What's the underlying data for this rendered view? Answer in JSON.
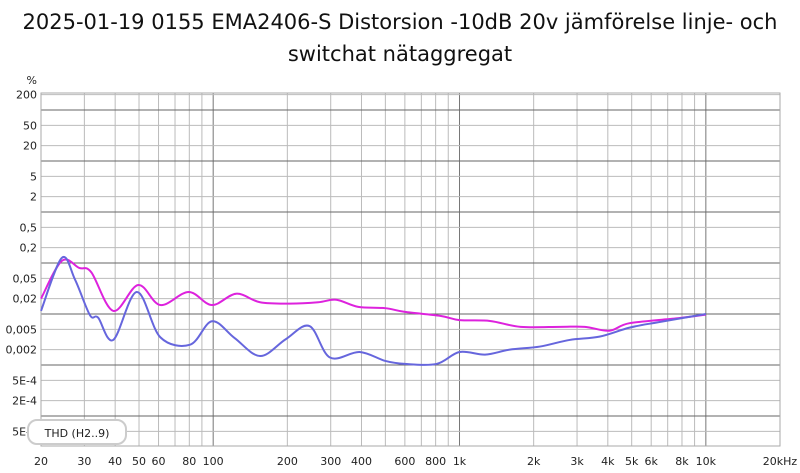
{
  "chart_data": {
    "type": "line",
    "title": "2025-01-19 0155 EMA2406-S Distorsion -10dB 20v jämförelse linje- och switchat nätaggregat",
    "xlabel": "",
    "ylabel": "%",
    "x_scale": "log",
    "y_scale": "log",
    "xlim": [
      20,
      20000
    ],
    "ylim": [
      2.7e-05,
      200
    ],
    "grid": true,
    "legend": {
      "placement": "bottom-left",
      "text": "THD (H2..9)"
    },
    "x_ticks": [
      {
        "v": 20,
        "l": "20"
      },
      {
        "v": 30,
        "l": "30"
      },
      {
        "v": 40,
        "l": "40"
      },
      {
        "v": 50,
        "l": "50"
      },
      {
        "v": 60,
        "l": "60"
      },
      {
        "v": 80,
        "l": "80"
      },
      {
        "v": 100,
        "l": "100"
      },
      {
        "v": 200,
        "l": "200"
      },
      {
        "v": 300,
        "l": "300"
      },
      {
        "v": 400,
        "l": "400"
      },
      {
        "v": 600,
        "l": "600"
      },
      {
        "v": 800,
        "l": "800"
      },
      {
        "v": 1000,
        "l": "1k"
      },
      {
        "v": 2000,
        "l": "2k"
      },
      {
        "v": 3000,
        "l": "3k"
      },
      {
        "v": 4000,
        "l": "4k"
      },
      {
        "v": 5000,
        "l": "5k"
      },
      {
        "v": 6000,
        "l": "6k"
      },
      {
        "v": 8000,
        "l": "8k"
      },
      {
        "v": 10000,
        "l": "10k"
      },
      {
        "v": 20000,
        "l": "20kHz"
      }
    ],
    "y_ticks": [
      {
        "v": 200,
        "l": "200"
      },
      {
        "v": 50,
        "l": "50"
      },
      {
        "v": 20,
        "l": "20"
      },
      {
        "v": 5,
        "l": "5"
      },
      {
        "v": 2,
        "l": "2"
      },
      {
        "v": 0.5,
        "l": "0,5"
      },
      {
        "v": 0.2,
        "l": "0,2"
      },
      {
        "v": 0.05,
        "l": "0,05"
      },
      {
        "v": 0.02,
        "l": "0,02"
      },
      {
        "v": 0.005,
        "l": "0,005"
      },
      {
        "v": 0.002,
        "l": "0,002"
      },
      {
        "v": 0.0005,
        "l": "5E-4"
      },
      {
        "v": 0.0002,
        "l": "2E-4"
      },
      {
        "v": 5e-05,
        "l": "5E-5"
      }
    ],
    "series": [
      {
        "color": "#dd22dd",
        "x": [
          20,
          24.3,
          28.6,
          32,
          39.3,
          49.6,
          61,
          79.5,
          98.8,
          124,
          155,
          205,
          267,
          316,
          388,
          500,
          600,
          836,
          1000,
          1330,
          1770,
          2560,
          3230,
          4060,
          4900,
          7760,
          10000
        ],
        "y": [
          0.02,
          0.11,
          0.08,
          0.066,
          0.0115,
          0.037,
          0.015,
          0.027,
          0.015,
          0.025,
          0.017,
          0.016,
          0.017,
          0.019,
          0.0138,
          0.013,
          0.011,
          0.0092,
          0.0076,
          0.0073,
          0.0056,
          0.0056,
          0.0056,
          0.0047,
          0.0066,
          0.0083,
          0.0097
        ]
      },
      {
        "color": "#6666dd",
        "x": [
          20,
          24.3,
          27.5,
          31.6,
          34.1,
          39.3,
          49,
          61,
          80.6,
          98.8,
          122,
          155,
          197,
          246,
          298,
          393,
          500,
          600,
          807,
          1000,
          1270,
          1600,
          2120,
          2800,
          3700,
          4900,
          6400,
          10000
        ],
        "y": [
          0.0115,
          0.126,
          0.047,
          0.0095,
          0.0085,
          0.0031,
          0.027,
          0.0035,
          0.0025,
          0.0072,
          0.0034,
          0.0015,
          0.0032,
          0.0058,
          0.0014,
          0.0018,
          0.0012,
          0.00105,
          0.00105,
          0.0018,
          0.0016,
          0.002,
          0.0023,
          0.0031,
          0.0036,
          0.0054,
          0.0069,
          0.01
        ]
      }
    ]
  }
}
